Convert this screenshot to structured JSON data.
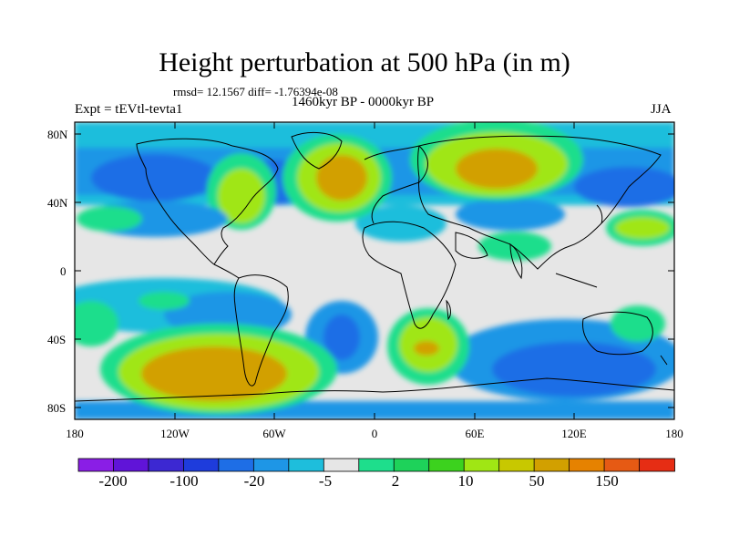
{
  "title": "Height perturbation at 500 hPa (in m)",
  "stats": "rmsd= 12.1567 diff= -1.76394e-08",
  "period": "1460kyr BP - 0000kyr BP",
  "experiment": "Expt = tEVtl-tevta1",
  "season": "JJA",
  "axes": {
    "y_labels": [
      "80N",
      "40N",
      "0",
      "40S",
      "80S"
    ],
    "x_labels": [
      "180",
      "120W",
      "60W",
      "0",
      "60E",
      "120E",
      "180"
    ]
  },
  "colorbar": {
    "labels": [
      "-200",
      "-100",
      "-20",
      "-5",
      "2",
      "10",
      "50",
      "150"
    ],
    "colors": [
      "#8a1ee6",
      "#6014d8",
      "#3c28d2",
      "#1e3cdc",
      "#1e6ee6",
      "#1e96e6",
      "#1ebedc",
      "#e6e6e6",
      "#1ede8c",
      "#1ed25a",
      "#3cd21e",
      "#a0e614",
      "#c8c800",
      "#d2a000",
      "#e68200",
      "#e65a14",
      "#e62d14"
    ]
  },
  "palette": {
    "neutral": "#e6e6e6",
    "cyan": "#1ebedc",
    "lightblue": "#1e96e6",
    "blue": "#1e6ee6",
    "darkblue": "#1e3cdc",
    "aqua": "#1ede8c",
    "green": "#3cd21e",
    "yellowgreen": "#a0e614",
    "yellow": "#c8c800",
    "orange": "#d2a000",
    "darkorange": "#e68200"
  }
}
